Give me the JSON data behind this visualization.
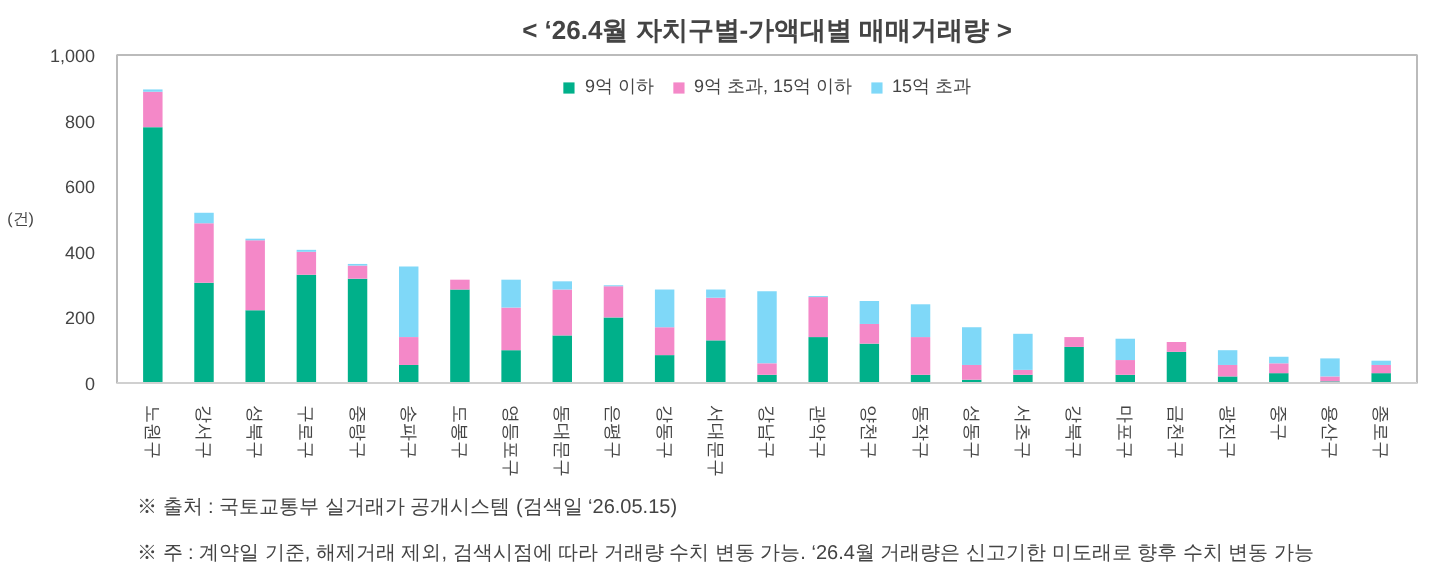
{
  "chart_data": {
    "type": "bar",
    "stacked": true,
    "title": "< ‘26.4월 자치구별-가액대별 매매거래량 >",
    "ylabel": "(건)",
    "categories": [
      "노원구",
      "강서구",
      "성북구",
      "구로구",
      "중랑구",
      "송파구",
      "도봉구",
      "영등포구",
      "동대문구",
      "은평구",
      "강동구",
      "서대문구",
      "강남구",
      "관악구",
      "양천구",
      "동작구",
      "성동구",
      "서초구",
      "강북구",
      "마포구",
      "금천구",
      "광진구",
      "중구",
      "용산구",
      "종로구"
    ],
    "series": [
      {
        "name": "9억 이하",
        "color": "#00b08a",
        "values": [
          780,
          306,
          222,
          330,
          318,
          55,
          285,
          100,
          145,
          200,
          85,
          130,
          25,
          140,
          120,
          25,
          10,
          25,
          110,
          25,
          95,
          20,
          30,
          5,
          30
        ]
      },
      {
        "name": "9억 초과, 15억 이하",
        "color": "#f488c8",
        "values": [
          108,
          181,
          213,
          70,
          40,
          85,
          30,
          130,
          140,
          95,
          85,
          130,
          35,
          122,
          60,
          115,
          45,
          15,
          30,
          45,
          30,
          35,
          30,
          15,
          25
        ]
      },
      {
        "name": "15억 초과",
        "color": "#7fd8f8",
        "values": [
          7,
          32,
          5,
          6,
          5,
          215,
          0,
          85,
          25,
          3,
          115,
          25,
          220,
          3,
          70,
          100,
          115,
          110,
          0,
          65,
          0,
          45,
          20,
          55,
          13
        ]
      }
    ],
    "ylim": [
      0,
      1000
    ],
    "yticks": [
      0,
      200,
      400,
      600,
      800,
      {
        "value": 1000,
        "label": "1,000"
      }
    ],
    "grid": false,
    "legend": "top",
    "annotations": [
      "※ 출처 : 국토교통부 실거래가 공개시스템 (검색일 ‘26.05.15)",
      "※ 주 : 계약일 기준, 해제거래 제외, 검색시점에 따라 거래량 수치 변동 가능. ‘26.4월 거래량은 신고기한 미도래로 향후 수치 변동 가능"
    ]
  }
}
